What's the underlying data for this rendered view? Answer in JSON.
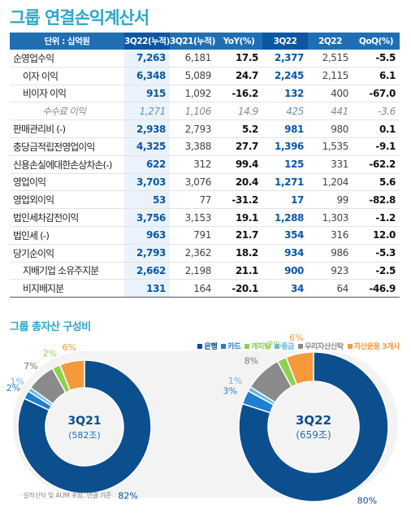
{
  "title": "그룹 연결손익계산서",
  "table": {
    "headers": [
      "단위 : 십억원",
      "3Q22(누적)",
      "3Q21(누적)",
      "YoY(%)",
      "3Q22",
      "2Q22",
      "QoQ(%)"
    ],
    "rows": [
      {
        "label": "순영업수익",
        "indent": 0,
        "values": [
          "7,263",
          "6,181",
          "17.5",
          "2,377",
          "2,515",
          "-5.5"
        ]
      },
      {
        "label": "이자 이익",
        "indent": 1,
        "values": [
          "6,348",
          "5,089",
          "24.7",
          "2,245",
          "2,115",
          "6.1"
        ]
      },
      {
        "label": "비이자 이익",
        "indent": 1,
        "values": [
          "915",
          "1,092",
          "-16.2",
          "132",
          "400",
          "-67.0"
        ]
      },
      {
        "label": "수수료 이익",
        "indent": 2,
        "sub": true,
        "values": [
          "1,271",
          "1,106",
          "14.9",
          "425",
          "441",
          "-3.6"
        ]
      },
      {
        "label": "판매관리비 (-)",
        "indent": 0,
        "values": [
          "2,938",
          "2,793",
          "5.2",
          "981",
          "980",
          "0.1"
        ]
      },
      {
        "label": "충당금적립전영업이익",
        "indent": 0,
        "values": [
          "4,325",
          "3,388",
          "27.7",
          "1,396",
          "1,535",
          "-9.1"
        ]
      },
      {
        "label": "신용손실에대한손상차손(-)",
        "indent": 0,
        "values": [
          "622",
          "312",
          "99.4",
          "125",
          "331",
          "-62.2"
        ]
      },
      {
        "label": "영업이익",
        "indent": 0,
        "values": [
          "3,703",
          "3,076",
          "20.4",
          "1,271",
          "1,204",
          "5.6"
        ]
      },
      {
        "label": "영업외이익",
        "indent": 0,
        "values": [
          "53",
          "77",
          "-31.2",
          "17",
          "99",
          "-82.8"
        ]
      },
      {
        "label": "법인세차감전이익",
        "indent": 0,
        "values": [
          "3,756",
          "3,153",
          "19.1",
          "1,288",
          "1,303",
          "-1.2"
        ]
      },
      {
        "label": "법인세 (-)",
        "indent": 0,
        "values": [
          "963",
          "791",
          "21.7",
          "354",
          "316",
          "12.0"
        ]
      },
      {
        "label": "당기순이익",
        "indent": 0,
        "values": [
          "2,793",
          "2,362",
          "18.2",
          "934",
          "986",
          "-5.3"
        ]
      },
      {
        "label": "지배기업 소유주지분",
        "indent": 1,
        "values": [
          "2,662",
          "2,198",
          "21.1",
          "900",
          "923",
          "-2.5"
        ]
      },
      {
        "label": "비지배지분",
        "indent": 1,
        "values": [
          "131",
          "164",
          "-20.1",
          "34",
          "64",
          "-46.9"
        ]
      }
    ]
  },
  "asset_section": {
    "title": "그룹 총자산 구성비",
    "note": "· 실적신탁 및 AUM 포함, 연결 기준",
    "legend": [
      {
        "label": "은행",
        "color": "#0b4f8f"
      },
      {
        "label": "카드",
        "color": "#1f7fd0"
      },
      {
        "label": "캐피탈",
        "color": "#8fd14f"
      },
      {
        "label": "종금",
        "color": "#66b8e8"
      },
      {
        "label": "우리자산신탁",
        "color": "#8a8a8a"
      },
      {
        "label": "자산운용 3개사",
        "color": "#f59a3c"
      }
    ]
  },
  "chart_data": [
    {
      "type": "pie",
      "title": "3Q21",
      "subtitle": "(582조)",
      "categories": [
        "은행",
        "카드",
        "종금",
        "우리자산신탁",
        "캐피탈",
        "자산운용 3개사"
      ],
      "values": [
        82,
        2,
        1,
        7,
        2,
        6
      ],
      "labels": [
        "82%",
        "2%",
        "1%",
        "7%",
        "2%",
        "6%"
      ],
      "colors": [
        "#0b4f8f",
        "#1f7fd0",
        "#66b8e8",
        "#8a8a8a",
        "#8fd14f",
        "#f59a3c"
      ]
    },
    {
      "type": "pie",
      "title": "3Q22",
      "subtitle": "(659조)",
      "categories": [
        "은행",
        "카드",
        "종금",
        "우리자산신탁",
        "캐피탈",
        "자산운용 3개사"
      ],
      "values": [
        80,
        3,
        1,
        8,
        2,
        6
      ],
      "labels": [
        "80%",
        "3%",
        "1%",
        "8%",
        "2%",
        "6%"
      ],
      "colors": [
        "#0b4f8f",
        "#1f7fd0",
        "#66b8e8",
        "#8a8a8a",
        "#8fd14f",
        "#f59a3c"
      ]
    }
  ]
}
